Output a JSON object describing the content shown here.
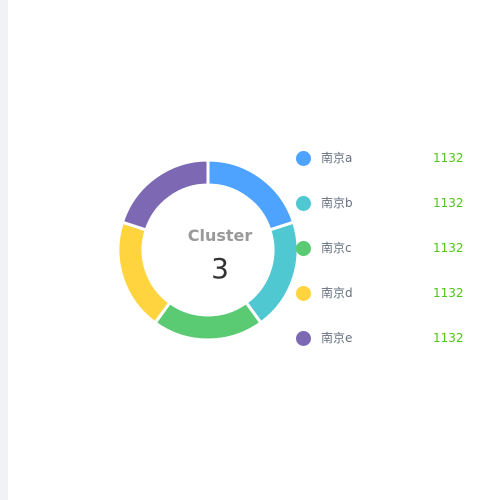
{
  "chart_data": {
    "type": "pie",
    "center": {
      "title": "Cluster",
      "value": "3"
    },
    "categories": [
      "南京a",
      "南京b",
      "南京c",
      "南京d",
      "南京e"
    ],
    "values": [
      1132,
      1132,
      1132,
      1132,
      1132
    ],
    "colors": [
      "#4da3ff",
      "#4fc8d2",
      "#5acb73",
      "#ffd43f",
      "#7d69b3"
    ],
    "legend_position": "right"
  }
}
